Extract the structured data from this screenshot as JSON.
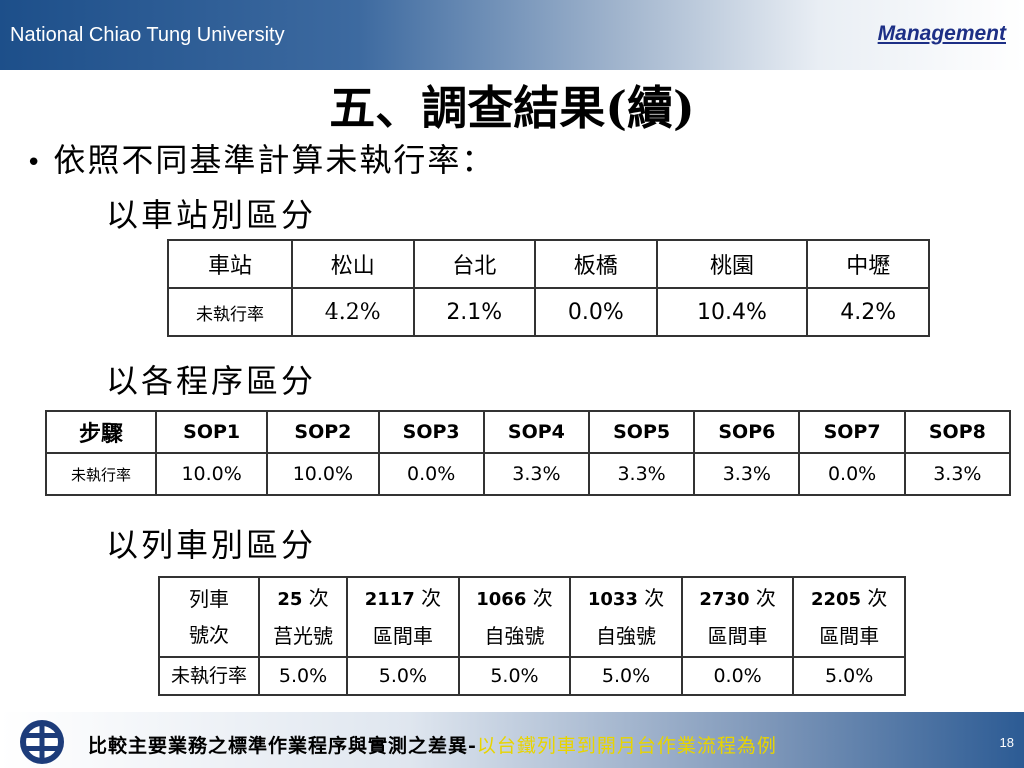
{
  "header": {
    "university": "National Chiao Tung University",
    "department": "Management"
  },
  "title": "五、調查結果(續)",
  "bullet": "依照不同基準計算未執行率：",
  "sections": {
    "station": "以車站別區分",
    "procedure": "以各程序區分",
    "train": "以列車別區分"
  },
  "station_table": {
    "header": [
      "車站",
      "松山",
      "台北",
      "板橋",
      "桃園",
      "中壢"
    ],
    "row_label": "未執行率",
    "values": [
      "4.2%",
      "2.1%",
      "0.0%",
      "10.4%",
      "4.2%"
    ]
  },
  "procedure_table": {
    "header": [
      "步驟",
      "SOP1",
      "SOP2",
      "SOP3",
      "SOP4",
      "SOP5",
      "SOP6",
      "SOP7",
      "SOP8"
    ],
    "row_label": "未執行率",
    "values": [
      "10.0%",
      "10.0%",
      "0.0%",
      "3.3%",
      "3.3%",
      "3.3%",
      "0.0%",
      "3.3%"
    ]
  },
  "train_table": {
    "header_label_line1": "列車",
    "header_label_line2": "號次",
    "trains": [
      {
        "number": "25",
        "suffix": "次",
        "type": "莒光號"
      },
      {
        "number": "2117",
        "suffix": "次",
        "type": "區間車"
      },
      {
        "number": "1066",
        "suffix": "次",
        "type": "自強號"
      },
      {
        "number": "1033",
        "suffix": "次",
        "type": "自強號"
      },
      {
        "number": "2730",
        "suffix": "次",
        "type": "區間車"
      },
      {
        "number": "2205",
        "suffix": "次",
        "type": "區間車"
      }
    ],
    "row_label": "未執行率",
    "values": [
      "5.0%",
      "5.0%",
      "5.0%",
      "5.0%",
      "0.0%",
      "5.0%"
    ]
  },
  "footer": {
    "text_main": "比較主要業務之標準作業程序與實測之差異-",
    "text_highlight": "以台鐵列車到開月台作業流程為例",
    "page_number": "18"
  }
}
